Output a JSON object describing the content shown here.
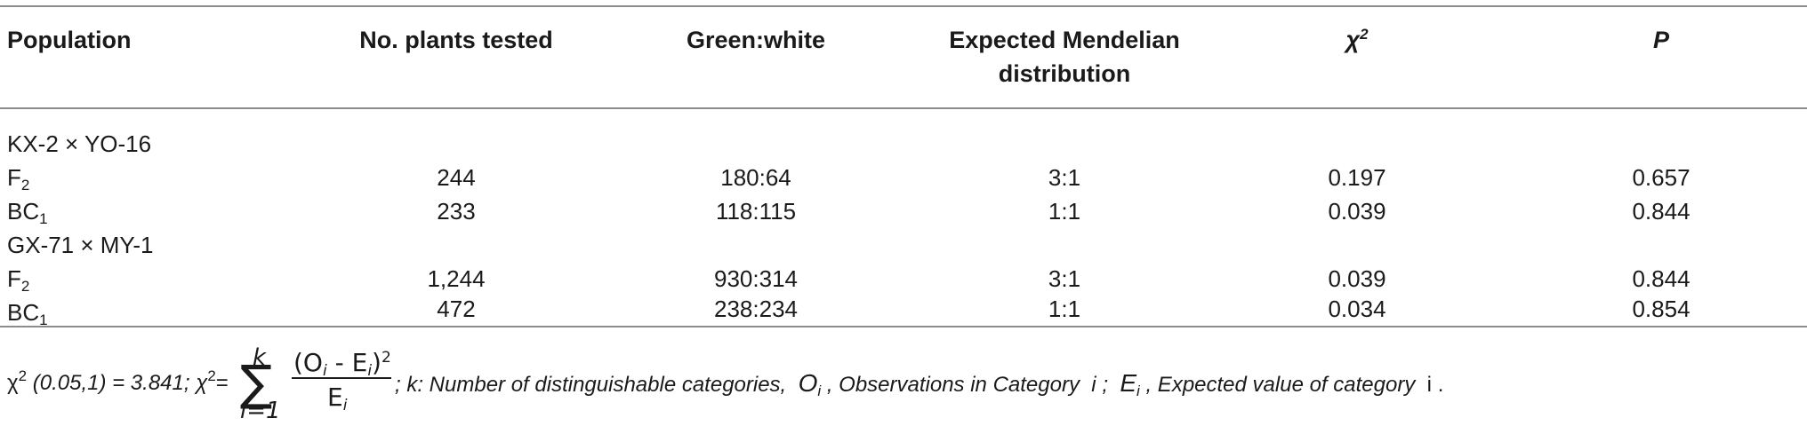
{
  "table": {
    "headers": {
      "population": "Population",
      "plants": "No. plants tested",
      "ratio": "Green:white",
      "expected_line1": "Expected Mendelian",
      "expected_line2": "distribution",
      "chi": "χ",
      "chi_sup": "2",
      "p": "P"
    },
    "groups": [
      {
        "name": "KX-2 × YO-16",
        "rows": [
          {
            "gen": "F",
            "gen_sub": "2",
            "plants": "244",
            "ratio": "180:64",
            "expected": "3:1",
            "chi": "0.197",
            "p": "0.657"
          },
          {
            "gen": "BC",
            "gen_sub": "1",
            "plants": "233",
            "ratio": "118:115",
            "expected": "1:1",
            "chi": "0.039",
            "p": "0.844"
          }
        ]
      },
      {
        "name": "GX-71 × MY-1",
        "rows": [
          {
            "gen": "F",
            "gen_sub": "2",
            "plants": "1,244",
            "ratio": "930:314",
            "expected": "3:1",
            "chi": "0.039",
            "p": "0.844"
          },
          {
            "gen": "BC",
            "gen_sub": "1",
            "plants": "472",
            "ratio": "238:234",
            "expected": "1:1",
            "chi": "0.034",
            "p": "0.854"
          }
        ]
      }
    ]
  },
  "footnote": {
    "chi_a": "χ",
    "sup_a": "2",
    "crit": " (0.05,1) = 3.841; χ",
    "sup_b": "2",
    "eq": "= ",
    "sum_top": "k",
    "sum_symbol": "∑",
    "sum_bottom": "i=1",
    "numerator": "(O",
    "num_sub_o": "i",
    "num_mid": " - E",
    "num_sub_e": "i",
    "num_close": ")",
    "num_sup": "2",
    "denominator": "E",
    "den_sub": "i",
    "after_formula": "; k: Number of distinguishable categories,",
    "o_sym": "O",
    "o_sub": "i",
    "o_desc": ", Observations in Category",
    "i_sym": "i",
    "semicolon": ";",
    "e_sym": "E",
    "e_sub": "i",
    "e_desc": ", Expected value of category",
    "i_end": "i",
    "period": "."
  }
}
